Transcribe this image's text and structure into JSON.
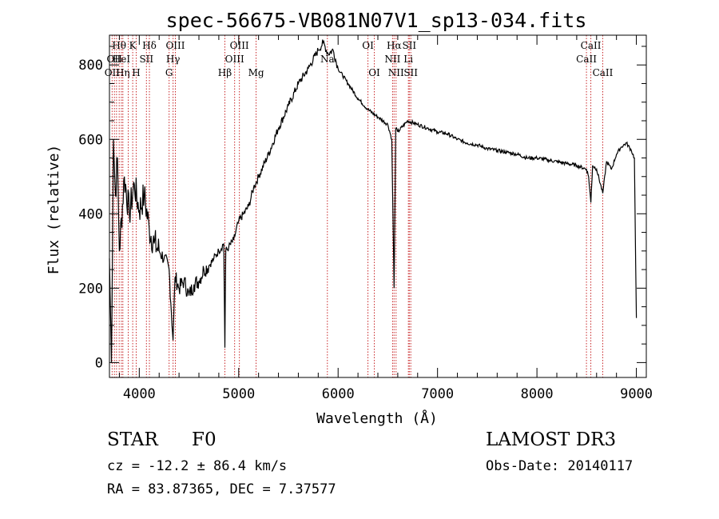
{
  "chart_data": {
    "type": "line",
    "title": "spec-56675-VB081N07V1_sp13-034.fits",
    "xlabel": "Wavelength (Å)",
    "ylabel": "Flux (relative)",
    "xlim": [
      3700,
      9100
    ],
    "ylim": [
      -40,
      880
    ],
    "x_ticks": [
      4000,
      5000,
      6000,
      7000,
      8000,
      9000
    ],
    "y_ticks": [
      0,
      200,
      400,
      600,
      800
    ],
    "series": [
      {
        "name": "flux",
        "x": [
          3700,
          3720,
          3740,
          3760,
          3780,
          3800,
          3850,
          3900,
          3950,
          4000,
          4050,
          4100,
          4150,
          4200,
          4250,
          4300,
          4340,
          4360,
          4400,
          4450,
          4500,
          4550,
          4600,
          4650,
          4700,
          4750,
          4800,
          4850,
          4861,
          4870,
          4900,
          4950,
          5000,
          5050,
          5100,
          5150,
          5200,
          5300,
          5400,
          5500,
          5600,
          5700,
          5800,
          5850,
          5900,
          5950,
          6000,
          6100,
          6200,
          6300,
          6400,
          6500,
          6540,
          6563,
          6580,
          6600,
          6700,
          6800,
          6900,
          7000,
          7100,
          7200,
          7300,
          7400,
          7500,
          7600,
          7700,
          7800,
          7900,
          8000,
          8100,
          8200,
          8300,
          8400,
          8498,
          8520,
          8542,
          8560,
          8600,
          8662,
          8700,
          8750,
          8800,
          8850,
          8900,
          8950,
          8980,
          9000
        ],
        "values": [
          280,
          0,
          600,
          450,
          550,
          300,
          500,
          400,
          480,
          410,
          450,
          360,
          320,
          300,
          280,
          250,
          60,
          230,
          200,
          220,
          180,
          210,
          220,
          250,
          260,
          280,
          300,
          320,
          40,
          300,
          310,
          330,
          380,
          400,
          420,
          470,
          500,
          560,
          630,
          690,
          750,
          790,
          840,
          860,
          830,
          840,
          790,
          750,
          710,
          680,
          660,
          640,
          600,
          200,
          630,
          620,
          650,
          640,
          630,
          620,
          615,
          600,
          590,
          585,
          575,
          570,
          565,
          560,
          550,
          550,
          545,
          540,
          535,
          530,
          520,
          500,
          430,
          530,
          520,
          455,
          540,
          520,
          560,
          580,
          590,
          570,
          550,
          120
        ]
      }
    ],
    "lines_red": [
      {
        "w": 3727,
        "row": 2,
        "label": "OII"
      },
      {
        "w": 3750,
        "row": 1,
        "label": "OII"
      },
      {
        "w": 3771,
        "row": 2,
        "label": ""
      },
      {
        "w": 3798,
        "row": 0,
        "label": "Hθ"
      },
      {
        "w": 3820,
        "row": 1,
        "label": "HeI"
      },
      {
        "w": 3835,
        "row": 2,
        "label": "Hη"
      },
      {
        "w": 3889,
        "row": 0,
        "label": ""
      },
      {
        "w": 3934,
        "row": 0,
        "label": "K"
      },
      {
        "w": 3969,
        "row": 2,
        "label": "H"
      },
      {
        "w": 4072,
        "row": 1,
        "label": "SII"
      },
      {
        "w": 4102,
        "row": 0,
        "label": "Hδ"
      },
      {
        "w": 4300,
        "row": 2,
        "label": "G"
      },
      {
        "w": 4340,
        "row": 1,
        "label": "Hγ"
      },
      {
        "w": 4363,
        "row": 0,
        "label": "OIII"
      },
      {
        "w": 4861,
        "row": 2,
        "label": "Hβ"
      },
      {
        "w": 4959,
        "row": 1,
        "label": "OIII"
      },
      {
        "w": 5007,
        "row": 0,
        "label": "OIII"
      },
      {
        "w": 5175,
        "row": 2,
        "label": "Mg"
      },
      {
        "w": 5892,
        "row": 1,
        "label": "Na"
      },
      {
        "w": 6300,
        "row": 0,
        "label": "OI"
      },
      {
        "w": 6364,
        "row": 2,
        "label": "OI"
      },
      {
        "w": 6548,
        "row": 1,
        "label": "NII"
      },
      {
        "w": 6563,
        "row": 0,
        "label": "Hα"
      },
      {
        "w": 6583,
        "row": 2,
        "label": "NII"
      },
      {
        "w": 6707,
        "row": 1,
        "label": "Li"
      },
      {
        "w": 6716,
        "row": 0,
        "label": "SII"
      },
      {
        "w": 6731,
        "row": 2,
        "label": "SII"
      },
      {
        "w": 8498,
        "row": 1,
        "label": "CaII"
      },
      {
        "w": 8542,
        "row": 0,
        "label": "CaII"
      },
      {
        "w": 8662,
        "row": 2,
        "label": "CaII"
      }
    ],
    "line_colors": {
      "data": "#000000",
      "marker": "#c8282a",
      "text": "#000000"
    }
  },
  "footer": {
    "object_class": "STAR",
    "subclass": "F0",
    "cz": "cz = -12.2 ± 86.4 km/s",
    "coords": "RA =  83.87365, DEC =   7.37577",
    "survey": "LAMOST DR3",
    "obs_date": "Obs-Date: 20140117"
  }
}
